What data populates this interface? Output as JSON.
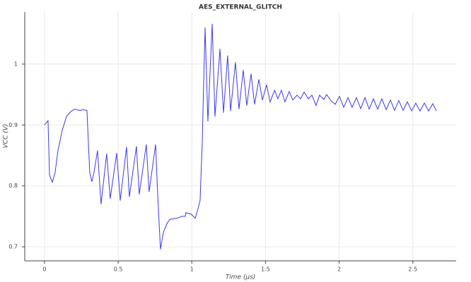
{
  "chart_data": {
    "type": "line",
    "title": "AES_EXTERNAL_GLITCH",
    "x_label": "Time (µs)",
    "y_label": "VCC (V)",
    "color": "#3a3aee",
    "grid": true,
    "xlim": [
      -0.134,
      2.794
    ],
    "ylim": [
      0.677,
      1.0855
    ],
    "xticks": [
      0,
      0.5,
      1,
      1.5,
      2,
      2.5
    ],
    "yticks": [
      0.7,
      0.8,
      0.9,
      1
    ],
    "x": [
      0,
      0.024,
      0.034,
      0.053,
      0.072,
      0.091,
      0.12,
      0.149,
      0.178,
      0.206,
      0.235,
      0.264,
      0.288,
      0.307,
      0.322,
      0.336,
      0.36,
      0.384,
      0.422,
      0.446,
      0.49,
      0.514,
      0.557,
      0.576,
      0.624,
      0.643,
      0.691,
      0.71,
      0.754,
      0.768,
      0.787,
      0.807,
      0.831,
      0.85,
      0.898,
      0.936,
      0.955,
      0.96,
      0.994,
      1.023,
      1.037,
      1.056,
      1.071,
      1.08,
      1.09,
      1.109,
      1.138,
      1.157,
      1.191,
      1.215,
      1.243,
      1.263,
      1.296,
      1.32,
      1.349,
      1.373,
      1.402,
      1.426,
      1.455,
      1.479,
      1.507,
      1.531,
      1.562,
      1.584,
      1.608,
      1.632,
      1.661,
      1.685,
      1.714,
      1.738,
      1.762,
      1.791,
      1.815,
      1.843,
      1.867,
      1.896,
      1.915,
      1.944,
      1.973,
      2.002,
      2.031,
      2.06,
      2.088,
      2.117,
      2.146,
      2.175,
      2.204,
      2.232,
      2.261,
      2.29,
      2.319,
      2.348,
      2.376,
      2.405,
      2.434,
      2.463,
      2.492,
      2.52,
      2.549,
      2.578,
      2.607,
      2.636,
      2.66
    ],
    "values": [
      0.9,
      0.907,
      0.818,
      0.806,
      0.822,
      0.857,
      0.891,
      0.914,
      0.922,
      0.926,
      0.924,
      0.925,
      0.924,
      0.822,
      0.807,
      0.822,
      0.858,
      0.77,
      0.853,
      0.779,
      0.854,
      0.776,
      0.864,
      0.782,
      0.865,
      0.786,
      0.868,
      0.79,
      0.868,
      0.787,
      0.696,
      0.724,
      0.738,
      0.745,
      0.747,
      0.75,
      0.75,
      0.756,
      0.754,
      0.747,
      0.758,
      0.776,
      0.874,
      0.966,
      1.06,
      0.906,
      1.066,
      0.914,
      1.025,
      0.92,
      1.014,
      0.923,
      1.003,
      0.926,
      0.99,
      0.932,
      0.984,
      0.934,
      0.975,
      0.941,
      0.966,
      0.938,
      0.957,
      0.943,
      0.957,
      0.938,
      0.955,
      0.941,
      0.949,
      0.943,
      0.954,
      0.943,
      0.949,
      0.932,
      0.949,
      0.942,
      0.95,
      0.94,
      0.934,
      0.947,
      0.929,
      0.945,
      0.929,
      0.945,
      0.927,
      0.945,
      0.926,
      0.943,
      0.926,
      0.943,
      0.925,
      0.941,
      0.924,
      0.94,
      0.924,
      0.938,
      0.923,
      0.936,
      0.923,
      0.936,
      0.923,
      0.935,
      0.923
    ]
  }
}
